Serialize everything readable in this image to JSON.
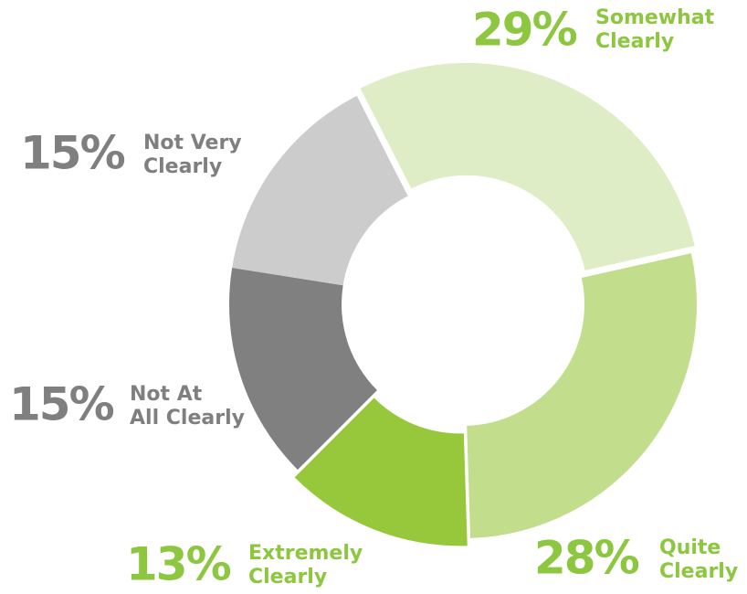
{
  "chart_data": {
    "type": "donut",
    "labels": [
      [
        "Somewhat",
        "Clearly"
      ],
      [
        "Quite",
        "Clearly"
      ],
      [
        "Extremely",
        "Clearly"
      ],
      [
        "Not At",
        "All Clearly"
      ],
      [
        "Not Very",
        "Clearly"
      ]
    ],
    "values": [
      29,
      28,
      13,
      15,
      15
    ],
    "value_labels": [
      "29%",
      "28%",
      "13%",
      "15%",
      "15%"
    ],
    "colors": [
      "#dfedc6",
      "#c2de8d",
      "#97c83c",
      "#808080",
      "#cccccc"
    ],
    "label_colors": [
      "#8dc63f",
      "#8dc63f",
      "#8dc63f",
      "#7f7f7f",
      "#7f7f7f"
    ],
    "exploded": [
      true,
      false,
      true,
      false,
      false
    ]
  }
}
